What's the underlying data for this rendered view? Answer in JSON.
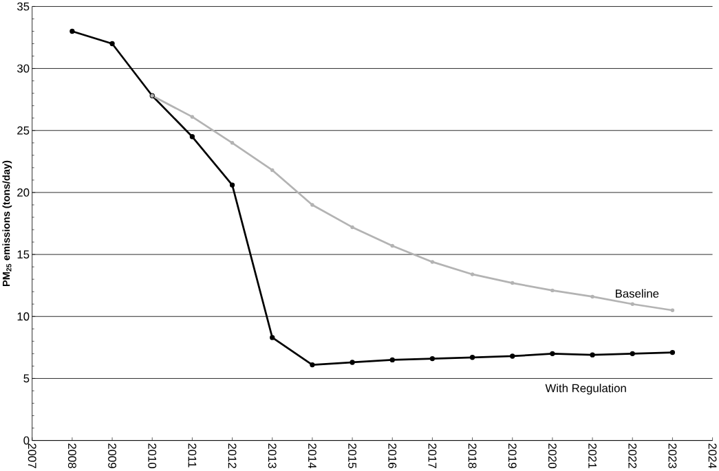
{
  "chart_data": {
    "type": "line",
    "ylabel": "PM$_{25}$ emissions (tons/day)",
    "x": [
      2008,
      2009,
      2010,
      2011,
      2012,
      2013,
      2014,
      2015,
      2016,
      2017,
      2018,
      2019,
      2020,
      2021,
      2022,
      2023
    ],
    "series": [
      {
        "name": "Baseline",
        "color": "#b3b3b3",
        "values": [
          null,
          null,
          27.8,
          26.1,
          24.0,
          21.8,
          19.0,
          17.2,
          15.7,
          14.4,
          13.4,
          12.7,
          12.1,
          11.6,
          11.0,
          10.5
        ]
      },
      {
        "name": "With Regulation",
        "color": "#000000",
        "values": [
          33.0,
          32.0,
          27.8,
          24.5,
          20.6,
          8.3,
          6.1,
          6.3,
          6.5,
          6.6,
          6.7,
          6.8,
          7.0,
          6.9,
          7.0,
          7.1
        ]
      }
    ],
    "xlim": [
      2007,
      2024
    ],
    "xticks": [
      2007,
      2008,
      2009,
      2010,
      2011,
      2012,
      2013,
      2014,
      2015,
      2016,
      2017,
      2018,
      2019,
      2020,
      2021,
      2022,
      2023,
      2024
    ],
    "ylim": [
      0,
      35
    ],
    "yticks": [
      0,
      5,
      10,
      15,
      20,
      25,
      30,
      35
    ],
    "grid": "y",
    "legend": false,
    "marker": "circle",
    "line_style": "solid"
  }
}
